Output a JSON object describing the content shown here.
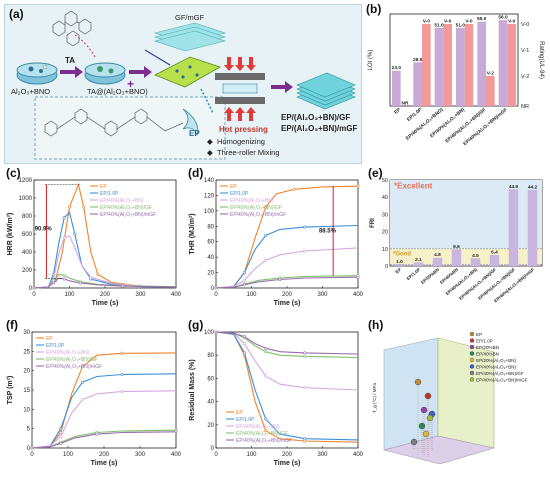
{
  "schematic": {
    "label": "(a)",
    "mix_label": "Al₂O₃+BNO",
    "ta_label": "TA",
    "ta_mix_label": "TA@(Al₂O₃+BNO)",
    "gf_label": "GF/mGF",
    "hot_pressing": "Hot pressing",
    "homogenizing": "Homogenizing",
    "three_roller": "Three-roller Mixing",
    "ep_label": "EP",
    "product_1": "EP/(Al₂O₃+BN)/GF",
    "product_2": "EP/(Al₂O₃+BN)/mGF",
    "plus": "+",
    "bullet": "◆"
  },
  "chart_b": {
    "label": "(b)",
    "type": "bar",
    "ylabel": "LOI (%)",
    "ylabel_right": "Rating(UL-94)",
    "right_ticks": [
      "V-0",
      "V-1",
      "V-2",
      "NR"
    ],
    "categories": [
      "EP",
      "EP/1.0P",
      "EP/40%(Al₂O₃+BNO)",
      "EP/40%(Al₂O₃+BN)",
      "EP/40%(Al₂O₃+BN)/GF",
      "EP/40%(Al₂O₃+BN)/mGF"
    ],
    "loi": [
      23.0,
      28.5,
      51.0,
      51.0,
      55.0,
      56.0
    ],
    "loi_labels": [
      "23.0",
      "28.5",
      "51.0",
      "51.0",
      "55.0",
      "56.0"
    ],
    "ratings": [
      "NR",
      "V-0",
      "V-0",
      "V-0",
      "V-2",
      "V-0"
    ],
    "colors": {
      "loi": "#c9a9d8",
      "rating": "#f29a9a"
    }
  },
  "chart_c": {
    "label": "(c)",
    "type": "line",
    "xlabel": "Time (s)",
    "ylabel": "HRR (kW/m²)",
    "xlim": [
      0,
      400
    ],
    "ylim": [
      0,
      1200
    ],
    "xticks": [
      "0",
      "100",
      "200",
      "300",
      "400"
    ],
    "yticks": [
      "0",
      "200",
      "400",
      "600",
      "800",
      "1000",
      "1200"
    ],
    "annotation": "90.9%",
    "series": [
      {
        "name": "EP",
        "color": "#f0832f",
        "points": [
          [
            0,
            0
          ],
          [
            40,
            10
          ],
          [
            60,
            80
          ],
          [
            80,
            400
          ],
          [
            100,
            900
          ],
          [
            125,
            1150
          ],
          [
            140,
            900
          ],
          [
            160,
            400
          ],
          [
            180,
            150
          ],
          [
            220,
            60
          ],
          [
            300,
            20
          ],
          [
            400,
            10
          ]
        ]
      },
      {
        "name": "EP/1.0P",
        "color": "#3b8fd9",
        "points": [
          [
            0,
            0
          ],
          [
            40,
            10
          ],
          [
            55,
            150
          ],
          [
            70,
            500
          ],
          [
            85,
            780
          ],
          [
            100,
            840
          ],
          [
            115,
            600
          ],
          [
            135,
            250
          ],
          [
            160,
            100
          ],
          [
            220,
            40
          ],
          [
            300,
            15
          ],
          [
            400,
            10
          ]
        ]
      },
      {
        "name": "EP/40%(Al₂O₃+BN)",
        "color": "#d6a6e6",
        "points": [
          [
            0,
            0
          ],
          [
            40,
            10
          ],
          [
            55,
            100
          ],
          [
            70,
            380
          ],
          [
            85,
            560
          ],
          [
            100,
            580
          ],
          [
            115,
            450
          ],
          [
            135,
            250
          ],
          [
            160,
            120
          ],
          [
            220,
            50
          ],
          [
            300,
            20
          ],
          [
            400,
            10
          ]
        ]
      },
      {
        "name": "EP/40%(Al₂O₃+BN)/GF",
        "color": "#7fbf6a",
        "points": [
          [
            0,
            0
          ],
          [
            40,
            10
          ],
          [
            55,
            80
          ],
          [
            70,
            150
          ],
          [
            85,
            140
          ],
          [
            100,
            110
          ],
          [
            130,
            70
          ],
          [
            180,
            40
          ],
          [
            250,
            25
          ],
          [
            400,
            15
          ]
        ]
      },
      {
        "name": "EP/40%(Al₂O₃+BN)/mGF",
        "color": "#9a6bb0",
        "points": [
          [
            0,
            0
          ],
          [
            40,
            10
          ],
          [
            55,
            60
          ],
          [
            70,
            110
          ],
          [
            85,
            100
          ],
          [
            100,
            80
          ],
          [
            130,
            55
          ],
          [
            180,
            35
          ],
          [
            250,
            20
          ],
          [
            400,
            12
          ]
        ]
      }
    ]
  },
  "chart_d": {
    "label": "(d)",
    "type": "line",
    "xlabel": "Time (s)",
    "ylabel": "THR (MJ/m²)",
    "xlim": [
      0,
      400
    ],
    "ylim": [
      0,
      140
    ],
    "xticks": [
      "0",
      "100",
      "200",
      "300",
      "400"
    ],
    "yticks": [
      "0",
      "20",
      "40",
      "60",
      "80",
      "100",
      "120",
      "140"
    ],
    "annotation": "88.5%",
    "series": [
      {
        "name": "EP",
        "color": "#f0832f",
        "points": [
          [
            0,
            0
          ],
          [
            50,
            2
          ],
          [
            80,
            20
          ],
          [
            110,
            65
          ],
          [
            140,
            105
          ],
          [
            170,
            122
          ],
          [
            220,
            128
          ],
          [
            300,
            131
          ],
          [
            400,
            132
          ]
        ]
      },
      {
        "name": "EP/1.0P",
        "color": "#3b8fd9",
        "points": [
          [
            0,
            0
          ],
          [
            50,
            2
          ],
          [
            80,
            20
          ],
          [
            110,
            50
          ],
          [
            140,
            68
          ],
          [
            180,
            76
          ],
          [
            250,
            79
          ],
          [
            400,
            81
          ]
        ]
      },
      {
        "name": "EP/40%(Al₂O₃+BN)",
        "color": "#d6a6e6",
        "points": [
          [
            0,
            0
          ],
          [
            50,
            2
          ],
          [
            80,
            10
          ],
          [
            110,
            25
          ],
          [
            140,
            36
          ],
          [
            180,
            43
          ],
          [
            250,
            48
          ],
          [
            400,
            52
          ]
        ]
      },
      {
        "name": "EP/40%(Al₂O₃+BN)/GF",
        "color": "#7fbf6a",
        "points": [
          [
            0,
            0
          ],
          [
            50,
            1
          ],
          [
            80,
            5
          ],
          [
            120,
            10
          ],
          [
            180,
            13
          ],
          [
            250,
            15
          ],
          [
            400,
            16
          ]
        ]
      },
      {
        "name": "EP/40%(Al₂O₃+BN)/mGF",
        "color": "#9a6bb0",
        "points": [
          [
            0,
            0
          ],
          [
            50,
            1
          ],
          [
            80,
            4
          ],
          [
            120,
            8
          ],
          [
            180,
            11
          ],
          [
            250,
            13
          ],
          [
            400,
            14
          ]
        ]
      }
    ]
  },
  "chart_e": {
    "label": "(e)",
    "type": "bar",
    "ylabel": "FRI",
    "ylim": [
      0,
      50
    ],
    "yticks": [
      "0",
      "10",
      "20",
      "30",
      "40",
      "50"
    ],
    "excellent": "*Excellent",
    "good": "*Good",
    "categories": [
      "EP",
      "EP/1.0P",
      "EP/20%BN",
      "EP/40%BN",
      "EP/40%(Al₂O₃+BN)",
      "EP/40%(Al₂O₃+BN)/GF",
      "EP/40%(Al₂O₃+BN)/GF",
      "EP/40%(Al₂O₃+BN)/mGF"
    ],
    "values": [
      1.0,
      2.1,
      4.8,
      9.6,
      4.5,
      6.4,
      44.6,
      44.2
    ],
    "value_labels": [
      "1.0",
      "2.1",
      "4.8",
      "9.6",
      "4.5",
      "6.4",
      "44.6",
      "44.2"
    ],
    "color": "#c9b6e0"
  },
  "chart_f": {
    "label": "(f)",
    "type": "line",
    "xlabel": "Time (s)",
    "ylabel": "TSP (m²)",
    "xlim": [
      0,
      400
    ],
    "ylim": [
      0,
      30
    ],
    "xticks": [
      "0",
      "100",
      "200",
      "300",
      "400"
    ],
    "yticks": [
      "0",
      "5",
      "10",
      "15",
      "20",
      "25",
      "30"
    ],
    "series": [
      {
        "name": "EP",
        "color": "#f0832f",
        "points": [
          [
            0,
            0
          ],
          [
            50,
            0.5
          ],
          [
            80,
            4
          ],
          [
            110,
            14
          ],
          [
            140,
            21
          ],
          [
            180,
            24
          ],
          [
            250,
            24.5
          ],
          [
            400,
            24.6
          ]
        ]
      },
      {
        "name": "EP/1.0P",
        "color": "#3b8fd9",
        "points": [
          [
            0,
            0
          ],
          [
            50,
            0.5
          ],
          [
            80,
            5
          ],
          [
            110,
            13
          ],
          [
            140,
            17
          ],
          [
            180,
            18.5
          ],
          [
            250,
            19
          ],
          [
            400,
            19.2
          ]
        ]
      },
      {
        "name": "EP/40%(Al₂O₃+BN)",
        "color": "#d6a6e6",
        "points": [
          [
            0,
            0
          ],
          [
            50,
            0.5
          ],
          [
            80,
            3
          ],
          [
            110,
            9
          ],
          [
            140,
            12.5
          ],
          [
            180,
            14
          ],
          [
            250,
            14.6
          ],
          [
            400,
            14.8
          ]
        ]
      },
      {
        "name": "EP/40%(Al₂O₃+BN)/GF",
        "color": "#7fbf6a",
        "points": [
          [
            0,
            0
          ],
          [
            50,
            0.3
          ],
          [
            80,
            1.5
          ],
          [
            120,
            3
          ],
          [
            180,
            4
          ],
          [
            250,
            4.4
          ],
          [
            400,
            4.6
          ]
        ]
      },
      {
        "name": "EP/40%(Al₂O₃+BN)/mGF",
        "color": "#9a6bb0",
        "points": [
          [
            0,
            0
          ],
          [
            50,
            0.3
          ],
          [
            80,
            1.2
          ],
          [
            120,
            2.6
          ],
          [
            180,
            3.6
          ],
          [
            250,
            4
          ],
          [
            400,
            4.2
          ]
        ]
      }
    ]
  },
  "chart_g": {
    "label": "(g)",
    "type": "line",
    "xlabel": "Time (s)",
    "ylabel": "Residual Mass (%)",
    "xlim": [
      0,
      400
    ],
    "ylim": [
      0,
      100
    ],
    "xticks": [
      "0",
      "100",
      "200",
      "300",
      "400"
    ],
    "yticks": [
      "0",
      "20",
      "40",
      "60",
      "80",
      "100"
    ],
    "series": [
      {
        "name": "EP",
        "color": "#f0832f",
        "points": [
          [
            0,
            100
          ],
          [
            50,
            98
          ],
          [
            80,
            80
          ],
          [
            110,
            40
          ],
          [
            140,
            15
          ],
          [
            180,
            8
          ],
          [
            250,
            6
          ],
          [
            400,
            5
          ]
        ]
      },
      {
        "name": "EP/1.0P",
        "color": "#3b8fd9",
        "points": [
          [
            0,
            100
          ],
          [
            50,
            98
          ],
          [
            80,
            82
          ],
          [
            110,
            50
          ],
          [
            140,
            25
          ],
          [
            180,
            12
          ],
          [
            250,
            8
          ],
          [
            400,
            7
          ]
        ]
      },
      {
        "name": "EP/40%(Al₂O₃+BN)",
        "color": "#d6a6e6",
        "points": [
          [
            0,
            100
          ],
          [
            50,
            99
          ],
          [
            80,
            90
          ],
          [
            110,
            75
          ],
          [
            140,
            62
          ],
          [
            180,
            55
          ],
          [
            250,
            52
          ],
          [
            400,
            50
          ]
        ]
      },
      {
        "name": "EP/40%(Al₂O₃+BN)/GF",
        "color": "#7fbf6a",
        "points": [
          [
            0,
            100
          ],
          [
            50,
            99
          ],
          [
            80,
            95
          ],
          [
            110,
            88
          ],
          [
            140,
            83
          ],
          [
            180,
            80
          ],
          [
            250,
            79
          ],
          [
            400,
            78
          ]
        ]
      },
      {
        "name": "EP/40%(Al₂O₃+BN)/mGF",
        "color": "#9a6bb0",
        "points": [
          [
            0,
            100
          ],
          [
            50,
            99
          ],
          [
            80,
            96
          ],
          [
            110,
            90
          ],
          [
            140,
            86
          ],
          [
            180,
            83
          ],
          [
            250,
            82
          ],
          [
            400,
            81
          ]
        ]
      }
    ]
  },
  "chart_h": {
    "label": "(h)",
    "type": "scatter",
    "zlabel": "T_g (°C) / MPa",
    "legend": [
      {
        "name": "EP",
        "color": "#c28a3a"
      },
      {
        "name": "EP/1.0P",
        "color": "#c0392b"
      },
      {
        "name": "EP/20%BN",
        "color": "#8e44ad"
      },
      {
        "name": "EP/40%BN",
        "color": "#2d8659"
      },
      {
        "name": "EP/20%(Al₂O₃+BN)",
        "color": "#e0b53a"
      },
      {
        "name": "EP/40%(Al₂O₃+BN)",
        "color": "#3a5fcd"
      },
      {
        "name": "EP/40%(Al₂O₃+BN)/GF",
        "color": "#7d7d7d"
      },
      {
        "name": "EP/40%(Al₂O₃+BN)/mGF",
        "color": "#9bbf3a"
      }
    ]
  }
}
